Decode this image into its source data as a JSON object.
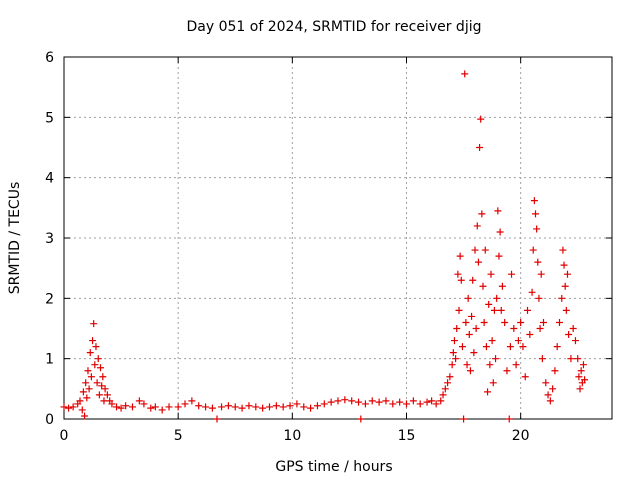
{
  "chart_data": {
    "type": "scatter",
    "title": "Day 051 of 2024, SRMTID for receiver djig",
    "xlabel": "GPS time / hours",
    "ylabel": "SRMTID / TECUs",
    "xlim": [
      0,
      24
    ],
    "ylim": [
      0,
      6
    ],
    "xticks": [
      0,
      5,
      10,
      15,
      20
    ],
    "yticks": [
      0,
      1,
      2,
      3,
      4,
      5,
      6
    ],
    "grid": true,
    "marker": "+",
    "color": "#e00000",
    "series": [
      {
        "name": "SRMTID",
        "points": [
          [
            0.0,
            0.2
          ],
          [
            0.2,
            0.18
          ],
          [
            0.4,
            0.2
          ],
          [
            0.6,
            0.25
          ],
          [
            0.7,
            0.3
          ],
          [
            0.8,
            0.15
          ],
          [
            0.85,
            0.45
          ],
          [
            0.9,
            0.05
          ],
          [
            0.95,
            0.6
          ],
          [
            1.0,
            0.35
          ],
          [
            1.05,
            0.8
          ],
          [
            1.1,
            0.5
          ],
          [
            1.15,
            1.1
          ],
          [
            1.2,
            0.7
          ],
          [
            1.25,
            1.3
          ],
          [
            1.3,
            1.58
          ],
          [
            1.35,
            0.9
          ],
          [
            1.4,
            1.2
          ],
          [
            1.45,
            0.6
          ],
          [
            1.5,
            1.0
          ],
          [
            1.55,
            0.4
          ],
          [
            1.6,
            0.85
          ],
          [
            1.65,
            0.55
          ],
          [
            1.7,
            0.7
          ],
          [
            1.75,
            0.3
          ],
          [
            1.8,
            0.5
          ],
          [
            1.9,
            0.4
          ],
          [
            2.0,
            0.3
          ],
          [
            2.1,
            0.25
          ],
          [
            2.3,
            0.2
          ],
          [
            2.5,
            0.18
          ],
          [
            2.7,
            0.22
          ],
          [
            3.0,
            0.2
          ],
          [
            3.3,
            0.3
          ],
          [
            3.5,
            0.25
          ],
          [
            3.8,
            0.18
          ],
          [
            4.0,
            0.2
          ],
          [
            4.3,
            0.15
          ],
          [
            4.6,
            0.2
          ],
          [
            5.0,
            0.2
          ],
          [
            5.3,
            0.25
          ],
          [
            5.6,
            0.3
          ],
          [
            5.9,
            0.22
          ],
          [
            6.2,
            0.2
          ],
          [
            6.5,
            0.18
          ],
          [
            6.7,
            0.0
          ],
          [
            6.9,
            0.2
          ],
          [
            7.2,
            0.22
          ],
          [
            7.5,
            0.2
          ],
          [
            7.8,
            0.18
          ],
          [
            8.1,
            0.22
          ],
          [
            8.4,
            0.2
          ],
          [
            8.7,
            0.18
          ],
          [
            9.0,
            0.2
          ],
          [
            9.3,
            0.22
          ],
          [
            9.6,
            0.2
          ],
          [
            9.9,
            0.22
          ],
          [
            10.2,
            0.25
          ],
          [
            10.5,
            0.2
          ],
          [
            10.8,
            0.18
          ],
          [
            11.1,
            0.22
          ],
          [
            11.4,
            0.25
          ],
          [
            11.7,
            0.28
          ],
          [
            12.0,
            0.3
          ],
          [
            12.3,
            0.32
          ],
          [
            12.6,
            0.3
          ],
          [
            12.9,
            0.28
          ],
          [
            13.0,
            0.0
          ],
          [
            13.2,
            0.25
          ],
          [
            13.5,
            0.3
          ],
          [
            13.8,
            0.28
          ],
          [
            14.1,
            0.3
          ],
          [
            14.4,
            0.25
          ],
          [
            14.7,
            0.28
          ],
          [
            15.0,
            0.25
          ],
          [
            15.3,
            0.3
          ],
          [
            15.6,
            0.25
          ],
          [
            15.9,
            0.28
          ],
          [
            16.1,
            0.3
          ],
          [
            16.3,
            0.25
          ],
          [
            16.5,
            0.3
          ],
          [
            16.6,
            0.4
          ],
          [
            16.7,
            0.5
          ],
          [
            16.8,
            0.6
          ],
          [
            16.9,
            0.7
          ],
          [
            17.0,
            0.9
          ],
          [
            17.05,
            1.1
          ],
          [
            17.1,
            1.3
          ],
          [
            17.15,
            1.0
          ],
          [
            17.2,
            1.5
          ],
          [
            17.25,
            2.4
          ],
          [
            17.3,
            1.8
          ],
          [
            17.35,
            2.7
          ],
          [
            17.4,
            2.3
          ],
          [
            17.45,
            1.2
          ],
          [
            17.5,
            0.0
          ],
          [
            17.55,
            5.72
          ],
          [
            17.6,
            1.6
          ],
          [
            17.65,
            0.9
          ],
          [
            17.7,
            2.0
          ],
          [
            17.75,
            1.4
          ],
          [
            17.8,
            0.8
          ],
          [
            17.85,
            1.7
          ],
          [
            17.9,
            2.3
          ],
          [
            17.95,
            1.1
          ],
          [
            18.0,
            2.8
          ],
          [
            18.05,
            1.5
          ],
          [
            18.1,
            3.2
          ],
          [
            18.15,
            2.6
          ],
          [
            18.2,
            4.5
          ],
          [
            18.25,
            4.97
          ],
          [
            18.3,
            3.4
          ],
          [
            18.35,
            2.2
          ],
          [
            18.4,
            1.6
          ],
          [
            18.45,
            2.8
          ],
          [
            18.5,
            1.2
          ],
          [
            18.55,
            0.45
          ],
          [
            18.6,
            1.9
          ],
          [
            18.65,
            0.9
          ],
          [
            18.7,
            2.4
          ],
          [
            18.75,
            1.3
          ],
          [
            18.8,
            0.6
          ],
          [
            18.85,
            1.8
          ],
          [
            18.9,
            1.0
          ],
          [
            18.95,
            2.0
          ],
          [
            19.0,
            3.45
          ],
          [
            19.05,
            2.7
          ],
          [
            19.1,
            3.1
          ],
          [
            19.15,
            1.8
          ],
          [
            19.2,
            2.2
          ],
          [
            19.3,
            1.6
          ],
          [
            19.4,
            0.8
          ],
          [
            19.5,
            0.0
          ],
          [
            19.55,
            1.2
          ],
          [
            19.6,
            2.4
          ],
          [
            19.7,
            1.5
          ],
          [
            19.8,
            0.9
          ],
          [
            19.9,
            1.3
          ],
          [
            20.0,
            1.6
          ],
          [
            20.1,
            1.2
          ],
          [
            20.2,
            0.7
          ],
          [
            20.3,
            1.8
          ],
          [
            20.4,
            1.4
          ],
          [
            20.5,
            2.1
          ],
          [
            20.55,
            2.8
          ],
          [
            20.6,
            3.62
          ],
          [
            20.65,
            3.4
          ],
          [
            20.7,
            3.15
          ],
          [
            20.75,
            2.6
          ],
          [
            20.8,
            2.0
          ],
          [
            20.85,
            1.5
          ],
          [
            20.9,
            2.4
          ],
          [
            20.95,
            1.0
          ],
          [
            21.0,
            1.6
          ],
          [
            21.1,
            0.6
          ],
          [
            21.2,
            0.4
          ],
          [
            21.3,
            0.3
          ],
          [
            21.4,
            0.5
          ],
          [
            21.5,
            0.8
          ],
          [
            21.6,
            1.2
          ],
          [
            21.7,
            1.6
          ],
          [
            21.8,
            2.0
          ],
          [
            21.85,
            2.8
          ],
          [
            21.9,
            2.55
          ],
          [
            21.95,
            2.2
          ],
          [
            22.0,
            1.8
          ],
          [
            22.05,
            2.4
          ],
          [
            22.1,
            1.4
          ],
          [
            22.2,
            1.0
          ],
          [
            22.3,
            1.5
          ],
          [
            22.4,
            1.3
          ],
          [
            22.5,
            1.0
          ],
          [
            22.55,
            0.7
          ],
          [
            22.6,
            0.5
          ],
          [
            22.65,
            0.8
          ],
          [
            22.7,
            0.6
          ],
          [
            22.75,
            0.9
          ],
          [
            22.8,
            0.65
          ]
        ]
      }
    ]
  }
}
